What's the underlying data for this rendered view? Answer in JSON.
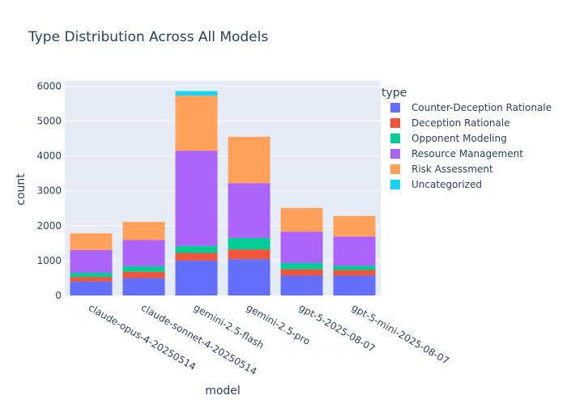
{
  "chart_data": {
    "type": "bar",
    "stacked": true,
    "title": "Type Distribution Across All Models",
    "xlabel": "model",
    "ylabel": "count",
    "categories": [
      "claude-opus-4-20250514",
      "claude-sonnet-4-20250514",
      "gemini-2.5-flash",
      "gemini-2.5-pro",
      "gpt-5-2025-08-07",
      "gpt-5-mini-2025-08-07"
    ],
    "ylim": [
      0,
      6150
    ],
    "yticks": [
      0,
      1000,
      2000,
      3000,
      4000,
      5000,
      6000
    ],
    "ytick_labels": [
      "0",
      "1000",
      "2000",
      "3000",
      "4000",
      "5000",
      "6000"
    ],
    "grid": true,
    "legend_title": "type",
    "legend_position": "right",
    "series": [
      {
        "name": "Counter-Deception Rationale",
        "color": "#636efa",
        "values": [
          400,
          500,
          1000,
          1040,
          570,
          570
        ]
      },
      {
        "name": "Deception Rationale",
        "color": "#ef553b",
        "values": [
          130,
          180,
          220,
          280,
          180,
          160
        ]
      },
      {
        "name": "Opponent Modeling",
        "color": "#00cc96",
        "values": [
          120,
          160,
          200,
          330,
          180,
          120
        ]
      },
      {
        "name": "Resource Management",
        "color": "#ab63fa",
        "values": [
          650,
          750,
          2730,
          1570,
          900,
          840
        ]
      },
      {
        "name": "Risk Assessment",
        "color": "#ffa15a",
        "values": [
          480,
          520,
          1580,
          1330,
          680,
          590
        ]
      },
      {
        "name": "Uncategorized",
        "color": "#19d3f3",
        "values": [
          0,
          0,
          130,
          0,
          0,
          0
        ]
      }
    ]
  }
}
